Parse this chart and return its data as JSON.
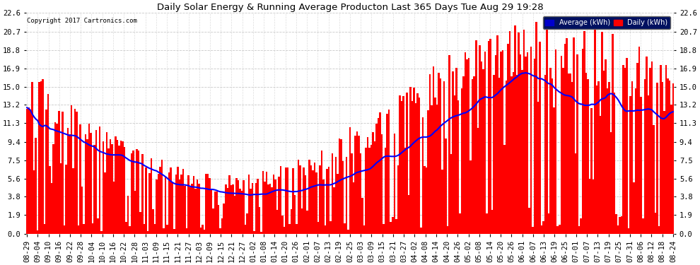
{
  "title": "Daily Solar Energy & Running Average Producton Last 365 Days Tue Aug 29 19:28",
  "copyright": "Copyright 2017 Cartronics.com",
  "bar_color": "#FF0000",
  "avg_line_color": "#0000FF",
  "background_color": "#FFFFFF",
  "plot_bg_color": "#FFFFFF",
  "grid_color": "#BBBBBB",
  "yticks": [
    0.0,
    1.9,
    3.8,
    5.6,
    7.5,
    9.4,
    11.3,
    13.2,
    15.0,
    16.9,
    18.8,
    20.7,
    22.6
  ],
  "ylim": [
    0,
    22.6
  ],
  "legend_avg_label": "Average (kWh)",
  "legend_daily_label": "Daily (kWh)",
  "legend_avg_color": "#0000CC",
  "legend_daily_color": "#FF0000",
  "n_days": 365,
  "seed": 42,
  "xtick_labels": [
    "08-29",
    "09-04",
    "09-10",
    "09-16",
    "09-22",
    "09-28",
    "10-04",
    "10-10",
    "10-16",
    "10-22",
    "10-28",
    "11-03",
    "11-09",
    "11-15",
    "11-21",
    "11-27",
    "12-03",
    "12-09",
    "12-15",
    "12-21",
    "12-27",
    "01-02",
    "01-08",
    "01-14",
    "01-20",
    "01-26",
    "02-01",
    "02-07",
    "02-13",
    "02-19",
    "02-25",
    "03-03",
    "03-09",
    "03-15",
    "03-21",
    "03-27",
    "04-02",
    "04-08",
    "04-14",
    "04-20",
    "04-26",
    "05-02",
    "05-08",
    "05-14",
    "05-20",
    "05-26",
    "06-01",
    "06-07",
    "06-13",
    "06-19",
    "06-25",
    "07-01",
    "07-07",
    "07-13",
    "07-19",
    "07-25",
    "07-31",
    "08-06",
    "08-12",
    "08-18",
    "08-24"
  ]
}
